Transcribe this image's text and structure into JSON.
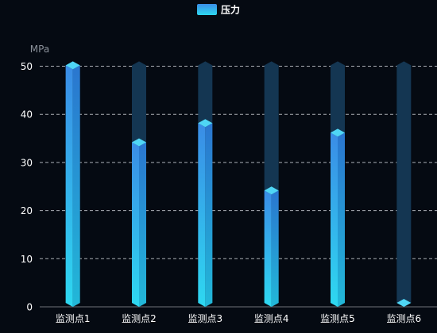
{
  "chart_data": {
    "type": "bar",
    "categories": [
      "监测点1",
      "监测点2",
      "监测点3",
      "监测点4",
      "监测点5",
      "监测点6"
    ],
    "series": [
      {
        "name": "压力",
        "values": [
          51,
          35,
          39,
          25,
          37,
          0
        ]
      }
    ],
    "ylabel": "MPa",
    "ylim": [
      0,
      50
    ],
    "yticks": [
      0,
      10,
      20,
      30,
      40,
      50
    ],
    "background_bar_max": 51,
    "grid": true,
    "legend_position": "top-center",
    "colors": {
      "bar_top": "#3a8ce6",
      "bar_bottom": "#2ed8f0",
      "bar_cap": "#4fd6f5",
      "bar_side": "#1f6fb8",
      "track": "#143652",
      "track_cap": "#16405e",
      "grid": "#c8ccd2",
      "axis_text": "#ffffff",
      "unit_text": "#8a9099",
      "background": "#050a12"
    }
  }
}
